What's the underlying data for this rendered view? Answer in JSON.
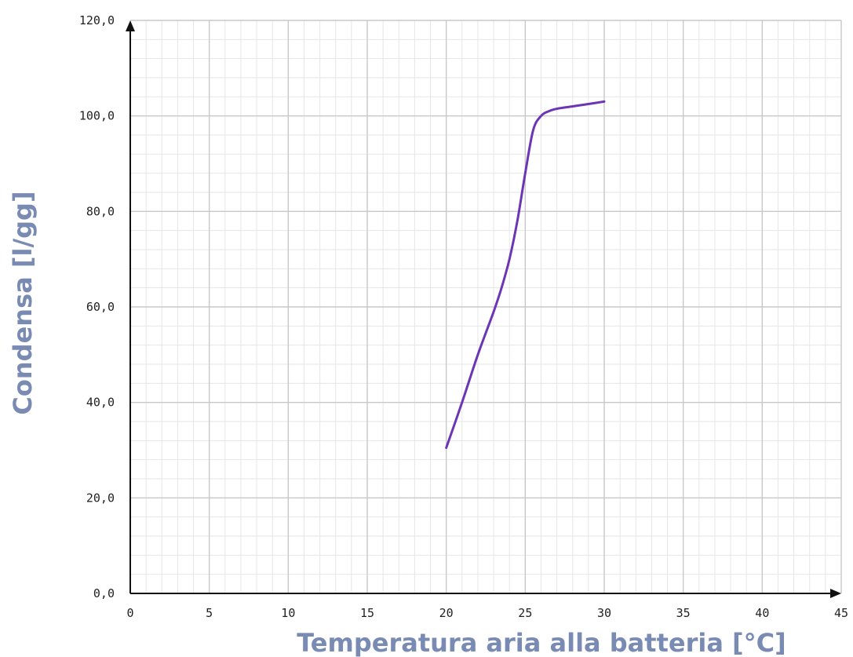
{
  "chart_data": {
    "type": "line",
    "title": "",
    "xlabel": "Temperatura aria alla batteria  [°C]",
    "ylabel": "Condensa  [l/gg]",
    "xlim": [
      0,
      45
    ],
    "ylim": [
      0,
      120
    ],
    "x_ticks": [
      "0",
      "5",
      "10",
      "15",
      "20",
      "25",
      "30",
      "35",
      "40",
      "45"
    ],
    "y_ticks": [
      "0,0",
      "20,0",
      "40,0",
      "60,0",
      "80,0",
      "100,0",
      "120,0"
    ],
    "grid": true,
    "series": [
      {
        "x": [
          20,
          21,
          22,
          23,
          23.5,
          24,
          24.5,
          25,
          25.5,
          26,
          26.5,
          27,
          28,
          29,
          30
        ],
        "y": [
          30.5,
          40,
          50,
          59,
          64,
          70,
          78,
          88,
          97,
          100,
          101,
          101.5,
          102,
          102.5,
          103
        ],
        "color": "#6b35b5"
      }
    ]
  }
}
